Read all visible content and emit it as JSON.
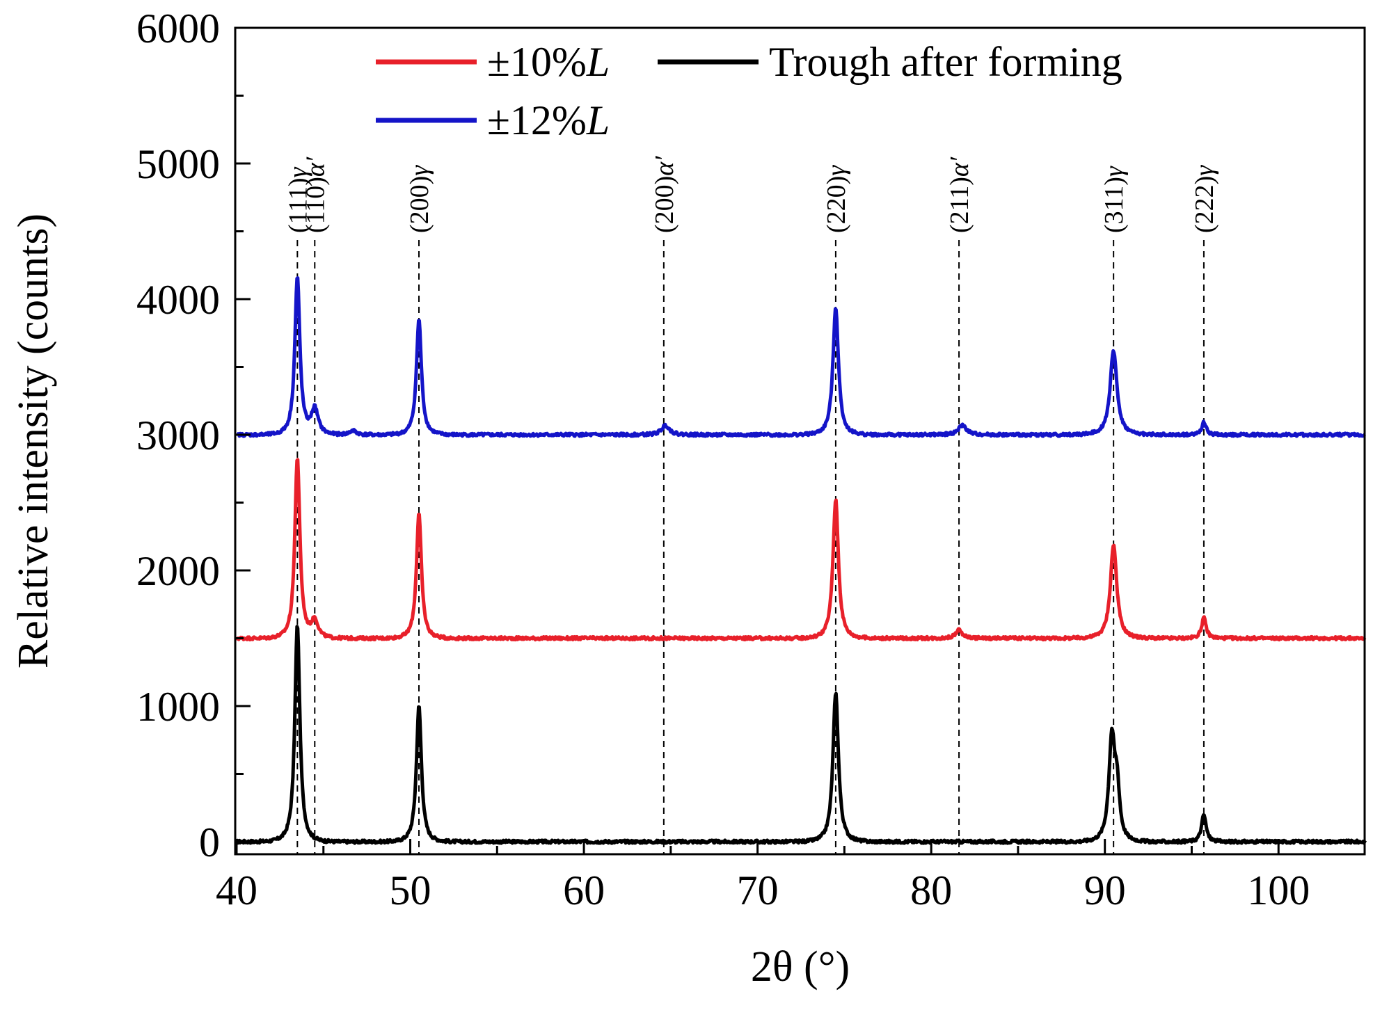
{
  "chart_data": {
    "type": "line",
    "title": "",
    "xlabel": "2θ (°)",
    "ylabel": "Relative intensity (counts)",
    "xlim": [
      40,
      105
    ],
    "ylim": [
      -80,
      6000
    ],
    "x_ticks": [
      40,
      50,
      60,
      70,
      80,
      90,
      100
    ],
    "y_ticks": [
      0,
      1000,
      2000,
      3000,
      4000,
      5000,
      6000
    ],
    "x_tick_labels": [
      "40",
      "50",
      "60",
      "70",
      "80",
      "90",
      "100"
    ],
    "y_tick_labels": [
      "0",
      "1000",
      "2000",
      "3000",
      "4000",
      "5000",
      "6000"
    ],
    "grid": false,
    "legend_position": "top",
    "legend": [
      {
        "name": "±10%",
        "italic_suffix": "L",
        "color": "#e8202a"
      },
      {
        "name": "Trough after forming",
        "italic_suffix": "",
        "color": "#000000"
      },
      {
        "name": "±12%",
        "italic_suffix": "L",
        "color": "#1414c8"
      }
    ],
    "peak_labels": [
      {
        "x": 43.5,
        "hkl": "(111)",
        "phase": "γ",
        "prime": false
      },
      {
        "x": 44.5,
        "hkl": "(110)",
        "phase": "α",
        "prime": true
      },
      {
        "x": 50.5,
        "hkl": "(200)",
        "phase": "γ",
        "prime": false
      },
      {
        "x": 64.6,
        "hkl": "(200)",
        "phase": "α",
        "prime": true
      },
      {
        "x": 74.5,
        "hkl": "(220)",
        "phase": "γ",
        "prime": false
      },
      {
        "x": 81.6,
        "hkl": "(211)",
        "phase": "α",
        "prime": true
      },
      {
        "x": 90.5,
        "hkl": "(311)",
        "phase": "γ",
        "prime": false
      },
      {
        "x": 95.7,
        "hkl": "(222)",
        "phase": "γ",
        "prime": false
      }
    ],
    "series": [
      {
        "name": "Trough after forming",
        "color": "#000000",
        "baseline": 0,
        "peaks": [
          {
            "x": 43.5,
            "height": 1600,
            "width": 0.22
          },
          {
            "x": 50.5,
            "height": 1000,
            "width": 0.22
          },
          {
            "x": 74.5,
            "height": 1100,
            "width": 0.24
          },
          {
            "x": 90.4,
            "height": 750,
            "width": 0.26
          },
          {
            "x": 90.7,
            "height": 350,
            "width": 0.22
          },
          {
            "x": 95.7,
            "height": 200,
            "width": 0.2
          }
        ]
      },
      {
        "name": "±10%L",
        "color": "#e8202a",
        "baseline": 1500,
        "peaks": [
          {
            "x": 43.5,
            "height": 1330,
            "width": 0.22
          },
          {
            "x": 44.5,
            "height": 130,
            "width": 0.3
          },
          {
            "x": 50.5,
            "height": 920,
            "width": 0.22
          },
          {
            "x": 74.5,
            "height": 1020,
            "width": 0.24
          },
          {
            "x": 81.6,
            "height": 60,
            "width": 0.3
          },
          {
            "x": 90.5,
            "height": 690,
            "width": 0.28
          },
          {
            "x": 95.7,
            "height": 150,
            "width": 0.2
          }
        ]
      },
      {
        "name": "±12%L",
        "color": "#1414c8",
        "baseline": 3000,
        "peaks": [
          {
            "x": 43.5,
            "height": 1160,
            "width": 0.22
          },
          {
            "x": 44.5,
            "height": 190,
            "width": 0.3
          },
          {
            "x": 46.7,
            "height": 30,
            "width": 0.3
          },
          {
            "x": 50.5,
            "height": 850,
            "width": 0.22
          },
          {
            "x": 64.7,
            "height": 70,
            "width": 0.35
          },
          {
            "x": 74.5,
            "height": 940,
            "width": 0.24
          },
          {
            "x": 81.8,
            "height": 70,
            "width": 0.35
          },
          {
            "x": 90.5,
            "height": 620,
            "width": 0.3
          },
          {
            "x": 95.7,
            "height": 90,
            "width": 0.2
          }
        ]
      }
    ]
  }
}
